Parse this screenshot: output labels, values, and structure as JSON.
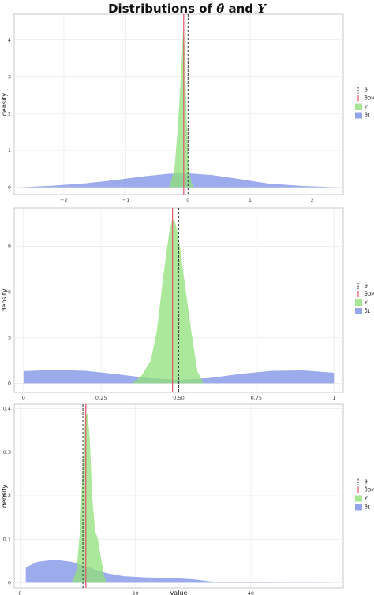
{
  "title": {
    "prefix": "Distributions of ",
    "theta": "θ̂",
    "mid": " and ",
    "y": "Y"
  },
  "legend": {
    "theta_label": "θ",
    "dmm_label": "θ̂DMM",
    "y_label": "Y",
    "theta1_label": "θ̂1"
  },
  "colors": {
    "green": "#90e07a",
    "blue": "#7b8fe6",
    "red": "#e0606f",
    "dash": "#444444"
  },
  "chart_data": [
    {
      "type": "area",
      "ylabel": "density",
      "xlabel": "",
      "xlim": [
        -2.8,
        2.5
      ],
      "ylim": [
        -0.2,
        4.7
      ],
      "xticks": [
        -2,
        -1,
        0,
        1,
        2
      ],
      "xtick_labels": [
        "−2",
        "−1",
        "0",
        "1",
        "2"
      ],
      "yticks": [
        0,
        1,
        2,
        3,
        4
      ],
      "ytick_labels": [
        "0",
        "1",
        "2",
        "3",
        "4"
      ],
      "theta": 0.0,
      "theta_dmm": -0.07,
      "series": [
        {
          "name": "Y",
          "x": [
            -0.3,
            -0.22,
            -0.17,
            -0.13,
            -0.1,
            -0.08,
            -0.06,
            -0.04,
            -0.02,
            0.0,
            0.03,
            0.06,
            0.1
          ],
          "y": [
            0,
            0.5,
            1.5,
            2.6,
            3.5,
            4.3,
            4.1,
            3.0,
            1.8,
            0.9,
            0.35,
            0.1,
            0
          ]
        },
        {
          "name": "θ̂1",
          "x": [
            -2.7,
            -2.2,
            -1.7,
            -1.2,
            -0.7,
            -0.3,
            0.0,
            0.4,
            0.8,
            1.3,
            1.8,
            2.4
          ],
          "y": [
            0.0,
            0.04,
            0.1,
            0.19,
            0.3,
            0.37,
            0.38,
            0.33,
            0.23,
            0.1,
            0.04,
            0.0
          ]
        }
      ]
    },
    {
      "type": "area",
      "ylabel": "density",
      "xlabel": "",
      "xlim": [
        -0.03,
        1.03
      ],
      "ylim": [
        -0.6,
        11.5
      ],
      "xticks": [
        0,
        0.25,
        0.5,
        0.75,
        1
      ],
      "xtick_labels": [
        "0",
        "0.25",
        "0.50",
        "0.75",
        "1"
      ],
      "yticks": [
        0,
        3,
        6,
        9
      ],
      "ytick_labels": [
        "0",
        "3",
        "6",
        "9"
      ],
      "theta": 0.5,
      "theta_dmm": 0.48,
      "series": [
        {
          "name": "Y",
          "x": [
            0.35,
            0.38,
            0.41,
            0.43,
            0.45,
            0.47,
            0.48,
            0.49,
            0.5,
            0.52,
            0.54,
            0.56,
            0.58
          ],
          "y": [
            0,
            0.5,
            1.5,
            3.5,
            7.0,
            10.0,
            10.8,
            10.5,
            9.5,
            6.5,
            3.5,
            0.8,
            0
          ]
        },
        {
          "name": "θ̂1",
          "x": [
            0,
            0.1,
            0.2,
            0.3,
            0.4,
            0.5,
            0.6,
            0.7,
            0.8,
            0.9,
            1.0
          ],
          "y": [
            0.8,
            0.88,
            0.82,
            0.6,
            0.35,
            0.22,
            0.35,
            0.62,
            0.82,
            0.85,
            0.7
          ]
        }
      ]
    },
    {
      "type": "area",
      "ylabel": "density",
      "xlabel": "value",
      "xlim": [
        -1,
        56
      ],
      "ylim": [
        -0.012,
        0.41
      ],
      "xticks": [
        0,
        20,
        40
      ],
      "xtick_labels": [
        "0",
        "20",
        "40"
      ],
      "yticks": [
        0,
        0.1,
        0.2,
        0.3,
        0.4
      ],
      "ytick_labels": [
        "0",
        "0.1",
        "0.2",
        "0.3",
        "0.4"
      ],
      "theta": 10.9,
      "theta_dmm": 11.4,
      "series": [
        {
          "name": "Y",
          "x": [
            9,
            9.8,
            10.4,
            10.9,
            11.3,
            11.7,
            12.1,
            12.5,
            13.0,
            13.5,
            14,
            14.5,
            15
          ],
          "y": [
            0,
            0.03,
            0.12,
            0.28,
            0.38,
            0.39,
            0.33,
            0.2,
            0.12,
            0.1,
            0.06,
            0.02,
            0
          ]
        },
        {
          "name": "θ̂1",
          "x": [
            1,
            3,
            6,
            9,
            12,
            15,
            18,
            22,
            26,
            30,
            33,
            36,
            42,
            48,
            54
          ],
          "y": [
            0.035,
            0.048,
            0.053,
            0.048,
            0.035,
            0.022,
            0.015,
            0.012,
            0.011,
            0.008,
            0.003,
            0.001,
            0.0007,
            0.0005,
            0.0003
          ]
        }
      ]
    }
  ]
}
